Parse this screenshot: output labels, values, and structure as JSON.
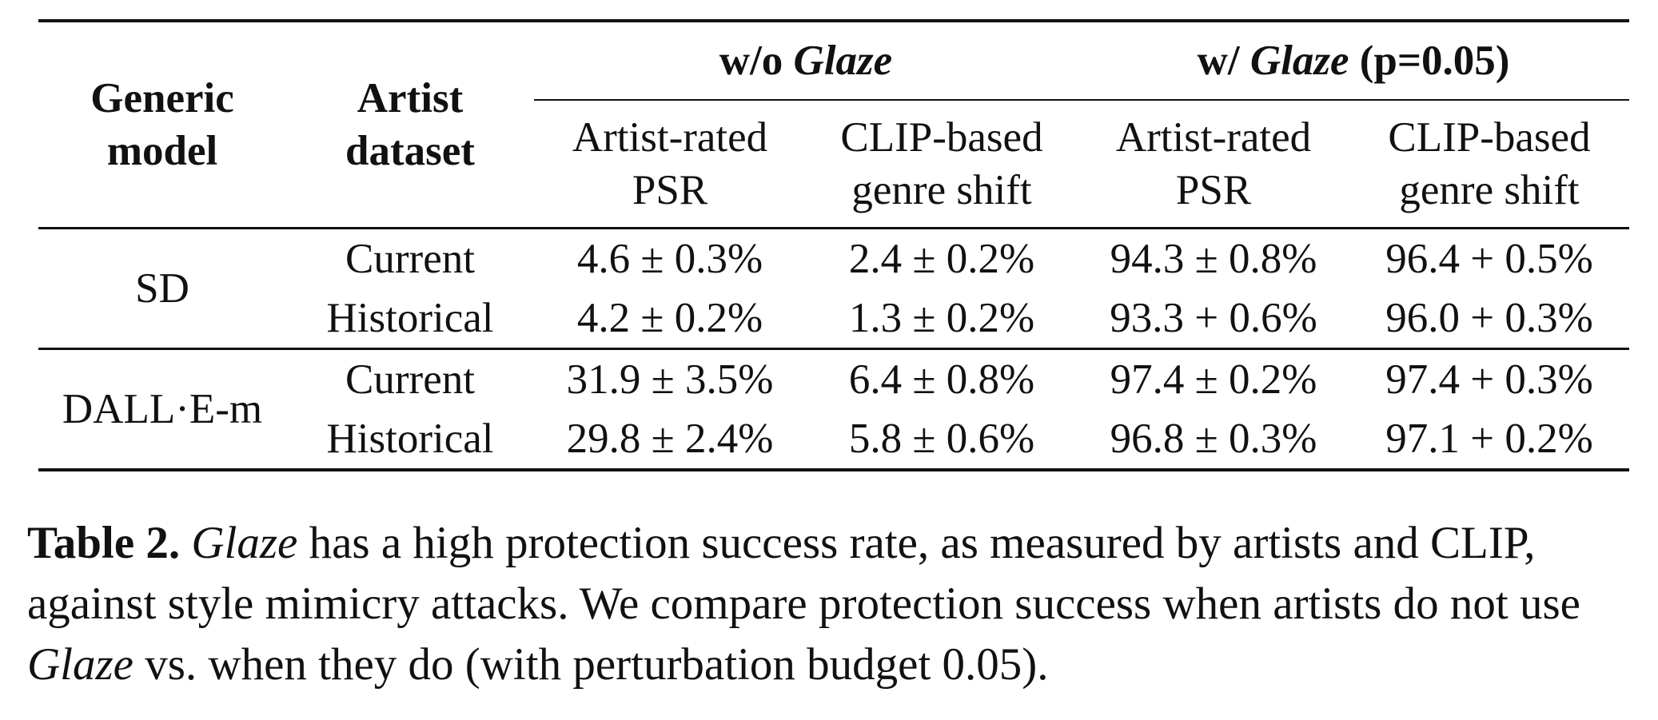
{
  "table": {
    "col_generic_model": "Generic model",
    "col_generic_model_line1": "Generic",
    "col_generic_model_line2": "model",
    "col_artist_dataset_line1": "Artist",
    "col_artist_dataset_line2": "dataset",
    "group_without": {
      "prefix": "w/o ",
      "emph": "Glaze",
      "suffix": ""
    },
    "group_with": {
      "prefix": "w/ ",
      "emph": "Glaze",
      "suffix": " (p=0.05)"
    },
    "metric_headers": [
      {
        "line1": "Artist-rated",
        "line2": "PSR"
      },
      {
        "line1": "CLIP-based",
        "line2": "genre shift"
      },
      {
        "line1": "Artist-rated",
        "line2": "PSR"
      },
      {
        "line1": "CLIP-based",
        "line2": "genre shift"
      }
    ],
    "groups": [
      {
        "model": "SD",
        "rows": [
          {
            "dataset": "Current",
            "values": [
              "4.6 ± 0.3%",
              "2.4 ± 0.2%",
              "94.3 ± 0.8%",
              "96.4 + 0.5%"
            ]
          },
          {
            "dataset": "Historical",
            "values": [
              "4.2 ± 0.2%",
              "1.3 ± 0.2%",
              "93.3 + 0.6%",
              "96.0 + 0.3%"
            ]
          }
        ]
      },
      {
        "model": "DALL·E-m",
        "rows": [
          {
            "dataset": "Current",
            "values": [
              "31.9 ± 3.5%",
              "6.4 ± 0.8%",
              "97.4 ± 0.2%",
              "97.4 + 0.3%"
            ]
          },
          {
            "dataset": "Historical",
            "values": [
              "29.8 ± 2.4%",
              "5.8 ± 0.6%",
              "96.8 ± 0.3%",
              "97.1 + 0.2%"
            ]
          }
        ]
      }
    ]
  },
  "caption": {
    "label": "Table 2.",
    "part1_emph": "Glaze",
    "part2": " has a high protection success rate, as measured by artists and CLIP, against style mimicry attacks. We compare protection success when artists do not use ",
    "part3_emph": "Glaze",
    "part4": " vs. when they do (with perturbation budget 0.05)."
  }
}
